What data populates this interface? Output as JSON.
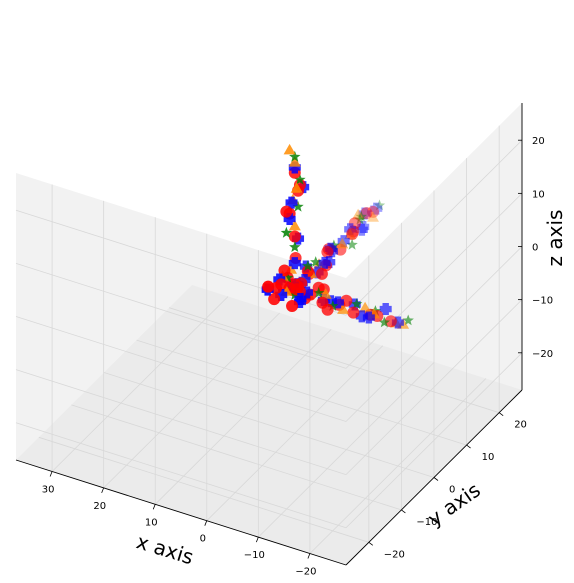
{
  "chart_data": {
    "type": "scatter",
    "projection": "3d",
    "title": "",
    "xlabel": "x axis",
    "ylabel": "y axis",
    "zlabel": "z axis",
    "xlim": [
      -27,
      37
    ],
    "ylim": [
      -27,
      27
    ],
    "zlim": [
      -27,
      27
    ],
    "x_ticks": [
      "−20",
      "−10",
      "0",
      "10",
      "20",
      "30"
    ],
    "y_ticks": [
      "−20",
      "−10",
      "0",
      "10",
      "20"
    ],
    "z_ticks": [
      "−20",
      "−10",
      "0",
      "10",
      "20"
    ],
    "grid": true,
    "legend": "none",
    "series": [
      {
        "marker": "circle",
        "color": "#ff0000",
        "points": [
          [
            -18,
            1,
            -1
          ],
          [
            -16,
            0,
            0
          ],
          [
            -14,
            1,
            -1
          ],
          [
            -12,
            -1,
            0
          ],
          [
            -10,
            0,
            1
          ],
          [
            -8,
            1,
            -1
          ],
          [
            -6,
            -1,
            0
          ],
          [
            -4,
            1,
            1
          ],
          [
            -2,
            0,
            -1
          ],
          [
            0,
            1,
            0
          ],
          [
            -1,
            -1,
            1
          ],
          [
            -3,
            0,
            0
          ],
          [
            -5,
            1,
            1
          ],
          [
            -7,
            -1,
            -1
          ],
          [
            1,
            0,
            0
          ],
          [
            2,
            1,
            1
          ],
          [
            3,
            -1,
            0
          ],
          [
            0,
            0,
            1
          ],
          [
            1,
            1,
            -1
          ],
          [
            -1,
            0,
            0
          ],
          [
            2,
            -1,
            1
          ],
          [
            0,
            0,
            10
          ],
          [
            1,
            0,
            14
          ],
          [
            0,
            1,
            18
          ],
          [
            -1,
            0,
            20
          ],
          [
            1,
            -1,
            15
          ],
          [
            0,
            0,
            22
          ],
          [
            2,
            0,
            3
          ],
          [
            0,
            2,
            0
          ],
          [
            0,
            4,
            1
          ],
          [
            1,
            6,
            -1
          ],
          [
            -1,
            8,
            0
          ],
          [
            0,
            10,
            1
          ],
          [
            1,
            12,
            0
          ],
          [
            0,
            14,
            -1
          ],
          [
            -1,
            16,
            1
          ],
          [
            0,
            18,
            0
          ],
          [
            1,
            20,
            0
          ],
          [
            0,
            22,
            1
          ],
          [
            0,
            24,
            0
          ],
          [
            -2,
            -4,
            0
          ],
          [
            3,
            5,
            2
          ],
          [
            4,
            0,
            -3
          ],
          [
            -4,
            2,
            3
          ],
          [
            2,
            -5,
            3
          ]
        ]
      },
      {
        "marker": "plus",
        "color": "#0000ff",
        "points": [
          [
            -20,
            0,
            0
          ],
          [
            -17,
            1,
            1
          ],
          [
            -15,
            -1,
            0
          ],
          [
            -13,
            0,
            -1
          ],
          [
            -11,
            1,
            0
          ],
          [
            -9,
            -1,
            1
          ],
          [
            -7,
            0,
            0
          ],
          [
            -5,
            1,
            -1
          ],
          [
            -3,
            -1,
            1
          ],
          [
            -1,
            0,
            -2
          ],
          [
            1,
            1,
            0
          ],
          [
            2,
            -1,
            -1
          ],
          [
            3,
            0,
            1
          ],
          [
            0,
            0,
            5
          ],
          [
            0,
            1,
            9
          ],
          [
            1,
            0,
            13
          ],
          [
            0,
            -1,
            17
          ],
          [
            -1,
            1,
            19
          ],
          [
            0,
            0,
            23
          ],
          [
            0,
            3,
            0
          ],
          [
            1,
            5,
            1
          ],
          [
            0,
            7,
            -1
          ],
          [
            -1,
            9,
            0
          ],
          [
            0,
            11,
            1
          ],
          [
            1,
            13,
            -1
          ],
          [
            0,
            15,
            0
          ],
          [
            0,
            17,
            1
          ],
          [
            -1,
            19,
            0
          ],
          [
            0,
            21,
            -1
          ],
          [
            1,
            23,
            0
          ],
          [
            0,
            25,
            0
          ],
          [
            2,
            4,
            -2
          ],
          [
            -2,
            6,
            2
          ],
          [
            4,
            -2,
            0
          ],
          [
            -3,
            -3,
            1
          ]
        ]
      },
      {
        "marker": "triangle",
        "color": "#ff8c00",
        "points": [
          [
            -21,
            0,
            0
          ],
          [
            -19,
            1,
            -1
          ],
          [
            -16,
            -1,
            1
          ],
          [
            -13,
            1,
            0
          ],
          [
            -10,
            -1,
            0
          ],
          [
            -6,
            0,
            1
          ],
          [
            -2,
            1,
            -1
          ],
          [
            1,
            -1,
            0
          ],
          [
            3,
            1,
            1
          ],
          [
            0,
            0,
            12
          ],
          [
            1,
            1,
            16
          ],
          [
            -1,
            -1,
            20
          ],
          [
            0,
            0,
            24
          ],
          [
            1,
            0,
            26
          ],
          [
            0,
            5,
            0
          ],
          [
            1,
            9,
            -1
          ],
          [
            -1,
            13,
            1
          ],
          [
            0,
            17,
            0
          ],
          [
            1,
            21,
            1
          ],
          [
            0,
            24,
            -1
          ],
          [
            2,
            2,
            2
          ]
        ]
      },
      {
        "marker": "star",
        "color": "#008000",
        "points": [
          [
            -22,
            0,
            1
          ],
          [
            -18,
            -1,
            0
          ],
          [
            -15,
            1,
            0
          ],
          [
            -12,
            0,
            1
          ],
          [
            -8,
            -1,
            0
          ],
          [
            -4,
            1,
            0
          ],
          [
            0,
            0,
            -1
          ],
          [
            2,
            1,
            1
          ],
          [
            0,
            0,
            8
          ],
          [
            1,
            -1,
            11
          ],
          [
            0,
            1,
            15
          ],
          [
            -1,
            0,
            21
          ],
          [
            0,
            0,
            25
          ],
          [
            0,
            4,
            2
          ],
          [
            1,
            8,
            0
          ],
          [
            0,
            12,
            1
          ],
          [
            -1,
            16,
            -1
          ],
          [
            0,
            20,
            1
          ],
          [
            1,
            22,
            0
          ],
          [
            0,
            26,
            0
          ]
        ]
      }
    ]
  }
}
